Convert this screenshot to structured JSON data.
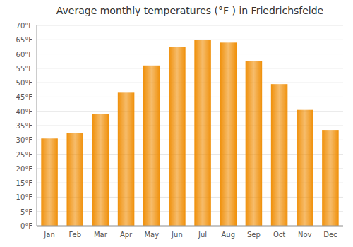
{
  "chart_data": {
    "type": "bar",
    "title": "Average monthly temperatures (°F ) in Friedrichsfelde",
    "categories": [
      "Jan",
      "Feb",
      "Mar",
      "Apr",
      "May",
      "Jun",
      "Jul",
      "Aug",
      "Sep",
      "Oct",
      "Nov",
      "Dec"
    ],
    "values": [
      30.5,
      32.5,
      39.0,
      46.5,
      56.0,
      62.5,
      65.0,
      64.0,
      57.5,
      49.5,
      40.5,
      33.5
    ],
    "color": "#F0900A",
    "ylim": [
      0,
      70
    ],
    "yticks": [
      {
        "value": 0,
        "label": "0°F"
      },
      {
        "value": 5,
        "label": "5°F"
      },
      {
        "value": 10,
        "label": "10°F"
      },
      {
        "value": 15,
        "label": "15°F"
      },
      {
        "value": 20,
        "label": "20°F"
      },
      {
        "value": 25,
        "label": "25°F"
      },
      {
        "value": 30,
        "label": "30°F"
      },
      {
        "value": 35,
        "label": "35°F"
      },
      {
        "value": 40,
        "label": "40°F"
      },
      {
        "value": 45,
        "label": "45°F"
      },
      {
        "value": 50,
        "label": "50°F"
      },
      {
        "value": 55,
        "label": "55°F"
      },
      {
        "value": 60,
        "label": "60°F"
      },
      {
        "value": 65,
        "label": "65°F"
      },
      {
        "value": 70,
        "label": "70°F"
      }
    ],
    "grid": true
  }
}
